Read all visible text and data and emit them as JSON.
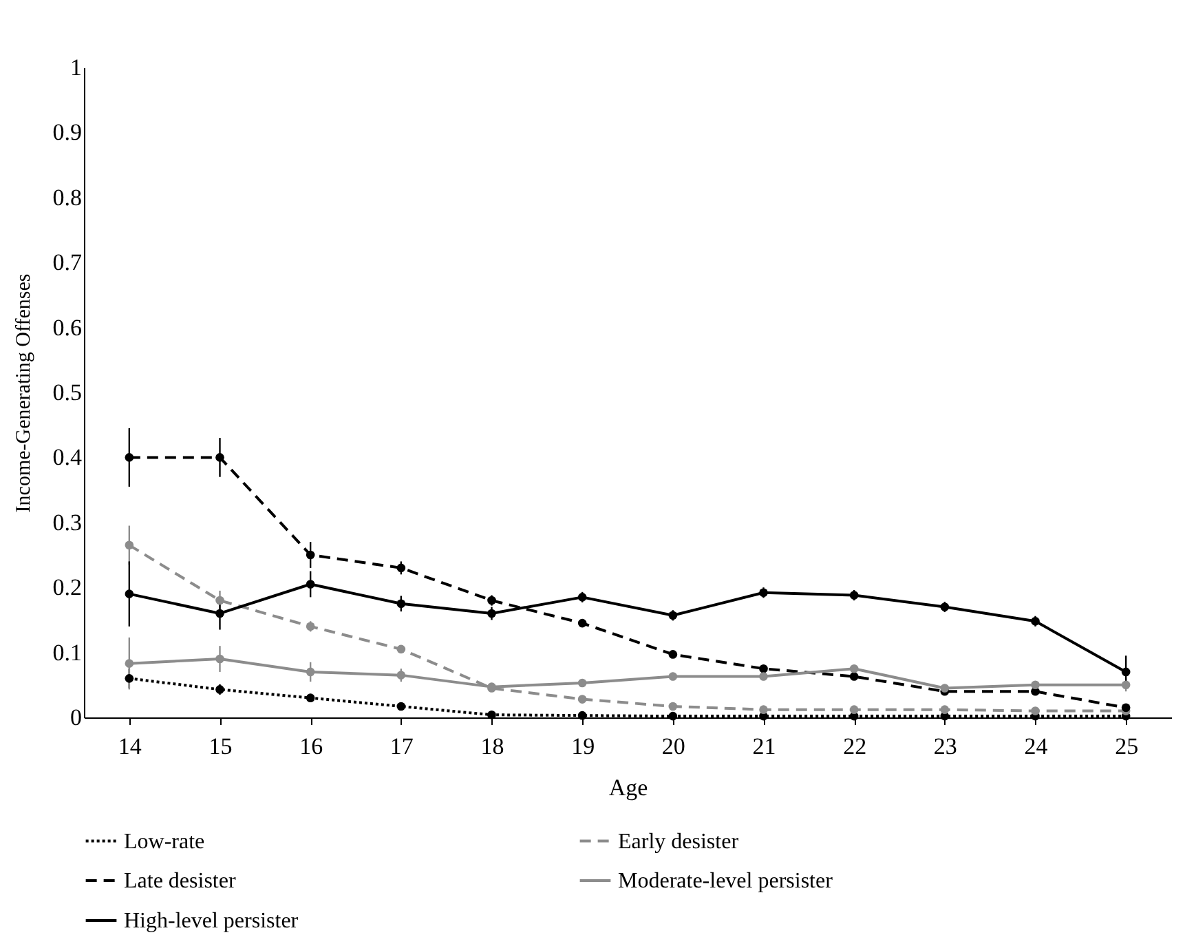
{
  "chart_data": {
    "type": "line",
    "xlabel": "Age",
    "ylabel": "Income-Generating Offenses",
    "categories": [
      "14",
      "15",
      "16",
      "17",
      "18",
      "19",
      "20",
      "21",
      "22",
      "23",
      "24",
      "25"
    ],
    "ylim": [
      0,
      1
    ],
    "yticks": [
      0,
      0.1,
      0.2,
      0.3,
      0.4,
      0.5,
      0.6,
      0.7,
      0.8,
      0.9,
      1
    ],
    "grid": false,
    "legend": "bottom",
    "marker": "circle",
    "series": [
      {
        "name": "Low-rate",
        "color": "#000000",
        "line_style": "dotted",
        "values": [
          0.06,
          0.043,
          0.03,
          0.017,
          0.004,
          0.003,
          0.002,
          0.002,
          0.002,
          0.002,
          0.002,
          0.002
        ],
        "errors": [
          0.015,
          0.008,
          0.006,
          0.003,
          0.003,
          0.003,
          0.003,
          0.003,
          0.003,
          0.003,
          0.003,
          0.003
        ]
      },
      {
        "name": "Early desister",
        "color": "#8c8c8c",
        "line_style": "dashed",
        "values": [
          0.265,
          0.18,
          0.14,
          0.105,
          0.045,
          0.028,
          0.017,
          0.012,
          0.012,
          0.012,
          0.01,
          0.01
        ],
        "errors": [
          0.03,
          0.015,
          0.008,
          0.006,
          0.004,
          0.004,
          0.004,
          0.004,
          0.004,
          0.004,
          0.004,
          0.004
        ]
      },
      {
        "name": "Late desister",
        "color": "#000000",
        "line_style": "dashed",
        "values": [
          0.4,
          0.4,
          0.25,
          0.23,
          0.18,
          0.145,
          0.097,
          0.075,
          0.063,
          0.04,
          0.04,
          0.015
        ],
        "errors": [
          0.045,
          0.03,
          0.02,
          0.01,
          0.008,
          0.005,
          0.005,
          0.005,
          0.005,
          0.005,
          0.005,
          0.005
        ]
      },
      {
        "name": "Moderate-level persister",
        "color": "#8c8c8c",
        "line_style": "solid",
        "values": [
          0.083,
          0.09,
          0.07,
          0.065,
          0.047,
          0.053,
          0.063,
          0.063,
          0.075,
          0.045,
          0.05,
          0.05
        ],
        "errors": [
          0.04,
          0.02,
          0.015,
          0.01,
          0.006,
          0.006,
          0.006,
          0.006,
          0.006,
          0.006,
          0.006,
          0.01
        ]
      },
      {
        "name": "High-level persister",
        "color": "#000000",
        "line_style": "solid",
        "values": [
          0.19,
          0.16,
          0.205,
          0.175,
          0.16,
          0.185,
          0.157,
          0.192,
          0.188,
          0.17,
          0.148,
          0.07
        ],
        "errors": [
          0.05,
          0.025,
          0.02,
          0.012,
          0.01,
          0.008,
          0.008,
          0.008,
          0.008,
          0.008,
          0.008,
          0.025
        ]
      }
    ]
  }
}
